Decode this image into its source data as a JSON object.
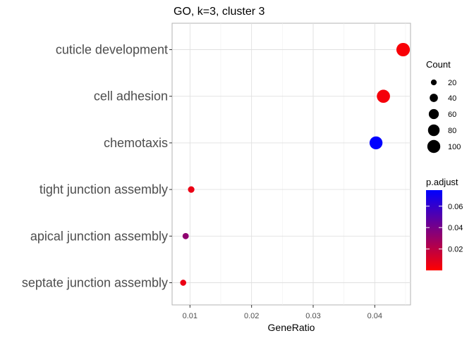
{
  "chart_data": {
    "type": "scatter",
    "title": "GO, k=3, cluster 3",
    "xlabel": "GeneRatio",
    "ylabel": "",
    "xlim": [
      0.0071,
      0.0458
    ],
    "x_ticks": [
      0.01,
      0.02,
      0.03,
      0.04
    ],
    "x_tick_labels": [
      "0.01",
      "0.02",
      "0.03",
      "0.04"
    ],
    "grid": true,
    "categories": [
      "cuticle development",
      "cell adhesion",
      "chemotaxis",
      "tight junction assembly",
      "apical junction assembly",
      "septate junction assembly"
    ],
    "points": [
      {
        "term": "cuticle development",
        "gene_ratio": 0.0446,
        "count": 108,
        "p_adjust": 0.002
      },
      {
        "term": "cell adhesion",
        "gene_ratio": 0.0414,
        "count": 103,
        "p_adjust": 0.003
      },
      {
        "term": "chemotaxis",
        "gene_ratio": 0.0402,
        "count": 100,
        "p_adjust": 0.075
      },
      {
        "term": "tight junction assembly",
        "gene_ratio": 0.0102,
        "count": 25,
        "p_adjust": 0.006
      },
      {
        "term": "apical junction assembly",
        "gene_ratio": 0.0093,
        "count": 23,
        "p_adjust": 0.033
      },
      {
        "term": "septate junction assembly",
        "gene_ratio": 0.0089,
        "count": 22,
        "p_adjust": 0.006
      }
    ],
    "size_legend": {
      "title": "Count",
      "values": [
        20,
        40,
        60,
        80,
        100
      ],
      "labels": [
        "20",
        "40",
        "60",
        "80",
        "100"
      ]
    },
    "color_legend": {
      "title": "p.adjust",
      "low_color": "#ff0000",
      "high_color": "#0000ff",
      "range": [
        0.0,
        0.075
      ],
      "ticks": [
        0.02,
        0.04,
        0.06
      ],
      "tick_labels": [
        "0.02",
        "0.04",
        "0.06"
      ]
    },
    "legend_position": "right"
  }
}
